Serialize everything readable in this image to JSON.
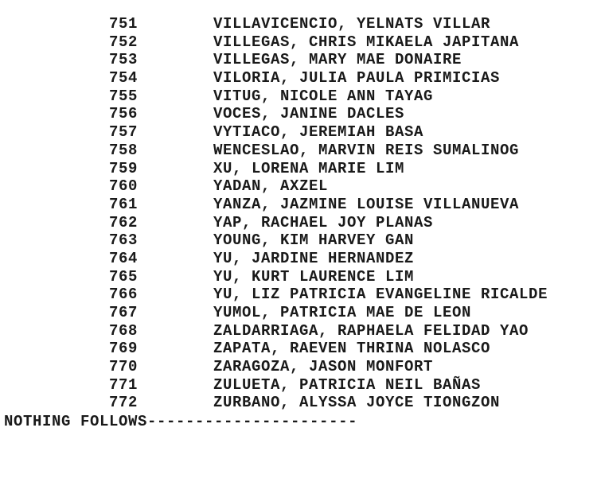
{
  "entries": [
    {
      "no": "751",
      "name": "VILLAVICENCIO, YELNATS VILLAR"
    },
    {
      "no": "752",
      "name": "VILLEGAS, CHRIS MIKAELA JAPITANA"
    },
    {
      "no": "753",
      "name": "VILLEGAS, MARY MAE DONAIRE"
    },
    {
      "no": "754",
      "name": "VILORIA, JULIA PAULA PRIMICIAS"
    },
    {
      "no": "755",
      "name": "VITUG, NICOLE ANN TAYAG"
    },
    {
      "no": "756",
      "name": "VOCES, JANINE DACLES"
    },
    {
      "no": "757",
      "name": "VYTIACO, JEREMIAH BASA"
    },
    {
      "no": "758",
      "name": "WENCESLAO, MARVIN REIS SUMALINOG"
    },
    {
      "no": "759",
      "name": "XU, LORENA MARIE LIM"
    },
    {
      "no": "760",
      "name": "YADAN, AXZEL"
    },
    {
      "no": "761",
      "name": "YANZA, JAZMINE LOUISE VILLANUEVA"
    },
    {
      "no": "762",
      "name": "YAP, RACHAEL JOY PLANAS"
    },
    {
      "no": "763",
      "name": "YOUNG, KIM HARVEY GAN"
    },
    {
      "no": "764",
      "name": "YU, JARDINE HERNANDEZ"
    },
    {
      "no": "765",
      "name": "YU, KURT LAURENCE LIM"
    },
    {
      "no": "766",
      "name": "YU, LIZ PATRICIA EVANGELINE RICALDE"
    },
    {
      "no": "767",
      "name": "YUMOL, PATRICIA MAE DE LEON"
    },
    {
      "no": "768",
      "name": "ZALDARRIAGA, RAPHAELA FELIDAD YAO"
    },
    {
      "no": "769",
      "name": "ZAPATA, RAEVEN THRINA NOLASCO"
    },
    {
      "no": "770",
      "name": "ZARAGOZA, JASON MONFORT"
    },
    {
      "no": "771",
      "name": "ZULUETA, PATRICIA NEIL BAÑAS"
    },
    {
      "no": "772",
      "name": "ZURBANO, ALYSSA JOYCE TIONGZON"
    }
  ],
  "footer": "NOTHING FOLLOWS----------------------"
}
